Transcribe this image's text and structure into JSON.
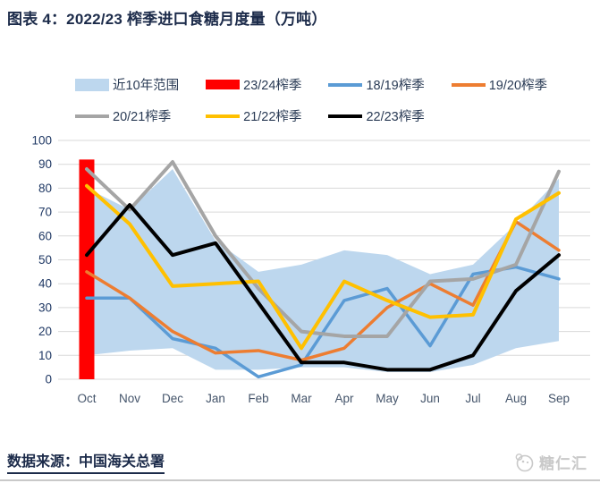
{
  "title": "图表 4：2022/23 榨季进口食糖月度量（万吨）",
  "footer": {
    "source_label": "数据来源：中国海关总署",
    "logo_text": "糖仁汇"
  },
  "colors": {
    "band": "#BDD7EE",
    "bar_red": "#FF0000",
    "blue": "#5B9BD5",
    "orange": "#ED7D31",
    "gray": "#A5A5A5",
    "yellow": "#FFC000",
    "black": "#000000",
    "grid": "#D9D9D9",
    "ytick_label": "#1F3864",
    "month_label": "#44546A"
  },
  "legend": {
    "items": [
      {
        "label": "近10年范围",
        "swatch": "band",
        "color": "#BDD7EE"
      },
      {
        "label": "23/24榨季",
        "swatch": "patch",
        "color": "#FF0000"
      },
      {
        "label": "18/19榨季",
        "swatch": "line",
        "color": "#5B9BD5"
      },
      {
        "label": "19/20榨季",
        "swatch": "line",
        "color": "#ED7D31"
      },
      {
        "label": "20/21榨季",
        "swatch": "line",
        "color": "#A5A5A5"
      },
      {
        "label": "21/22榨季",
        "swatch": "line",
        "color": "#FFC000"
      },
      {
        "label": "22/23榨季",
        "swatch": "line",
        "color": "#000000"
      }
    ]
  },
  "chart_data": {
    "type": "combo: area band + single bar + 5 line series",
    "title": "图表 4：2022/23 榨季进口食糖月度量（万吨）",
    "xlabel": "",
    "ylabel": "",
    "categories": [
      "Oct",
      "Nov",
      "Dec",
      "Jan",
      "Feb",
      "Mar",
      "Apr",
      "May",
      "Jun",
      "Jul",
      "Aug",
      "Sep"
    ],
    "ylim": [
      0,
      100
    ],
    "yticks": [
      0,
      10,
      20,
      30,
      40,
      50,
      60,
      70,
      80,
      90,
      100
    ],
    "grid": "horizontal only",
    "legend_position": "top",
    "band": {
      "name": "近10年范围",
      "upper": [
        80,
        71,
        88,
        58,
        45,
        48,
        54,
        52,
        44,
        48,
        65,
        84
      ],
      "lower": [
        10,
        12,
        13,
        4,
        4,
        5,
        5,
        3,
        3,
        6,
        13,
        16
      ],
      "fill": "#BDD7EE"
    },
    "bar": {
      "name": "23/24榨季",
      "month": "Oct",
      "value": 92,
      "color": "#FF0000"
    },
    "series": [
      {
        "name": "18/19榨季",
        "color": "#5B9BD5",
        "width": 3.5,
        "values": [
          34,
          34,
          17,
          13,
          1,
          6,
          33,
          38,
          14,
          44,
          47,
          42
        ]
      },
      {
        "name": "19/20榨季",
        "color": "#ED7D31",
        "width": 3.5,
        "values": [
          45,
          34,
          20,
          11,
          12,
          8,
          13,
          30,
          40,
          31,
          66,
          54
        ]
      },
      {
        "name": "20/21榨季",
        "color": "#A5A5A5",
        "width": 4,
        "values": [
          88,
          71,
          91,
          60,
          38,
          20,
          18,
          18,
          41,
          42,
          48,
          87
        ]
      },
      {
        "name": "21/22榨季",
        "color": "#FFC000",
        "width": 4,
        "values": [
          81,
          65,
          39,
          40,
          41,
          13,
          41,
          33,
          26,
          27,
          67,
          78
        ]
      },
      {
        "name": "22/23榨季",
        "color": "#000000",
        "width": 4,
        "values": [
          52,
          73,
          52,
          57,
          32,
          7,
          7,
          4,
          4,
          10,
          37,
          52
        ]
      }
    ]
  }
}
